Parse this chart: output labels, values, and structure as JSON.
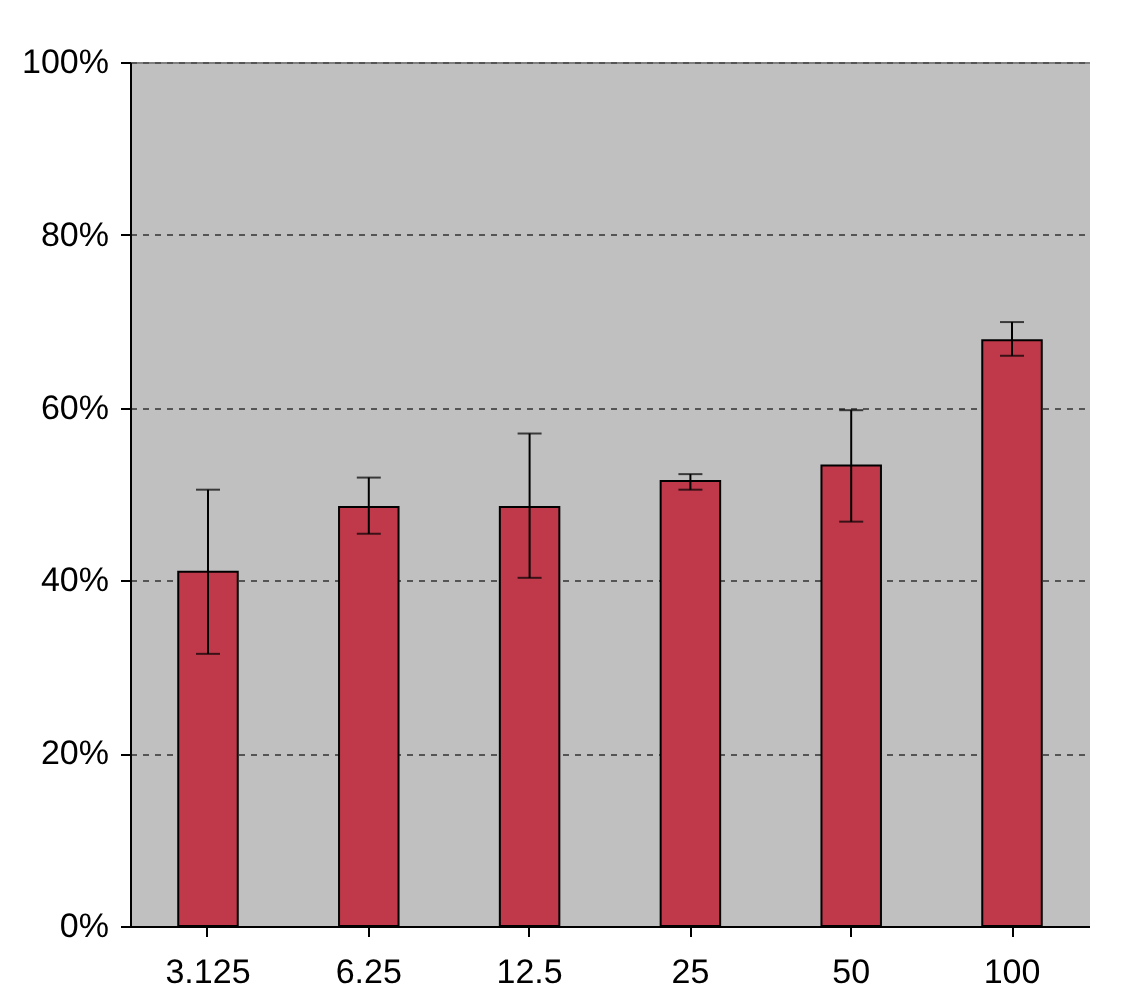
{
  "chart_data": {
    "type": "bar",
    "categories": [
      "3.125",
      "6.25",
      "12.5",
      "25",
      "50",
      "100"
    ],
    "values": [
      41,
      48.5,
      48.5,
      51.5,
      53.3,
      67.8
    ],
    "errors": [
      [
        31.5,
        50.5
      ],
      [
        45.4,
        51.9
      ],
      [
        40.3,
        57
      ],
      [
        50.5,
        52.3
      ],
      [
        46.8,
        59.7
      ],
      [
        66,
        69.9
      ]
    ],
    "color": "#c0394a",
    "ylim": [
      0,
      100
    ],
    "yticks": [
      {
        "value": 0,
        "label": "0%"
      },
      {
        "value": 20,
        "label": "20%"
      },
      {
        "value": 40,
        "label": "40%"
      },
      {
        "value": 60,
        "label": "60%"
      },
      {
        "value": 80,
        "label": "80%"
      },
      {
        "value": 100,
        "label": "100%"
      }
    ],
    "grid": "y"
  }
}
